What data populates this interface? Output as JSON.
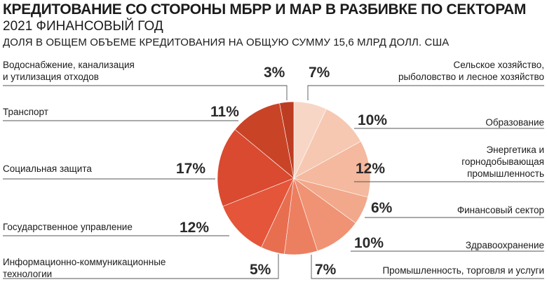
{
  "header": {
    "title": "КРЕДИТОВАНИЕ СО СТОРОНЫ МБРР И МАР В РАЗБИВКЕ ПО СЕКТОРАМ",
    "subtitle": "2021 ФИНАНСОВЫЙ ГОД",
    "note": "ДОЛЯ В ОБЩЕМ ОБЪЕМЕ КРЕДИТОВАНИЯ НА ОБЩУЮ СУММУ 15,6 МЛРД ДОЛЛ. США"
  },
  "chart_data": {
    "type": "pie",
    "start": "12 o'clock",
    "direction": "clockwise",
    "slices": [
      {
        "label": [
          "Сельское хозяйство,",
          "рыболовство и лесное хозяйство"
        ],
        "value": 7,
        "value_label": "7%",
        "color": "#f8d6c6"
      },
      {
        "label": [
          "Образование"
        ],
        "value": 10,
        "value_label": "10%",
        "color": "#f6c8b2"
      },
      {
        "label": [
          "Энергетика и",
          "горнодобывающая",
          "промышленность"
        ],
        "value": 12,
        "value_label": "12%",
        "color": "#f4b99e"
      },
      {
        "label": [
          "Финансовый сектор"
        ],
        "value": 6,
        "value_label": "6%",
        "color": "#f2a88b"
      },
      {
        "label": [
          "Здравоохранение"
        ],
        "value": 10,
        "value_label": "10%",
        "color": "#ef9374"
      },
      {
        "label": [
          "Промышленность, торговля и услуги"
        ],
        "value": 7,
        "value_label": "7%",
        "color": "#ec7f60"
      },
      {
        "label": [
          "Информационно-коммуникационные",
          "технологии"
        ],
        "value": 5,
        "value_label": "5%",
        "color": "#e76f50"
      },
      {
        "label": [
          "Государственное управление"
        ],
        "value": 12,
        "value_label": "12%",
        "color": "#e4553a"
      },
      {
        "label": [
          "Социальная защита"
        ],
        "value": 17,
        "value_label": "17%",
        "color": "#d94a30"
      },
      {
        "label": [
          "Транспорт"
        ],
        "value": 11,
        "value_label": "11%",
        "color": "#c94427"
      },
      {
        "label": [
          "Водоснабжение, канализация",
          "и утилизация отходов"
        ],
        "value": 3,
        "value_label": "3%",
        "color": "#bd3d22"
      }
    ]
  }
}
